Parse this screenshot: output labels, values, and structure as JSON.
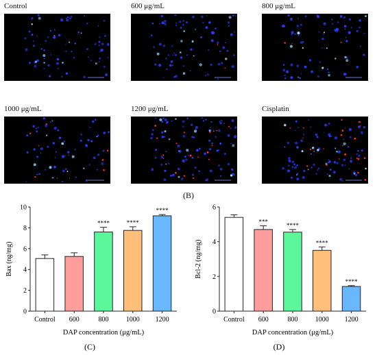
{
  "micrograph_panels": [
    {
      "label": "Control",
      "red_density": 0.0,
      "blue_density": 0.7
    },
    {
      "label": "600 μg/mL",
      "red_density": 0.01,
      "blue_density": 0.75
    },
    {
      "label": "800 μg/mL",
      "red_density": 0.02,
      "blue_density": 0.7
    },
    {
      "label": "1000 μg/mL",
      "red_density": 0.06,
      "blue_density": 0.6
    },
    {
      "label": "1200 μg/mL",
      "red_density": 0.12,
      "blue_density": 0.9
    },
    {
      "label": "Cisplatin",
      "red_density": 0.14,
      "blue_density": 0.85
    }
  ],
  "panel_labels": {
    "B": "(B)",
    "C": "(C)",
    "D": "(D)"
  },
  "colors": {
    "bars": [
      "#ffffff",
      "#ff9c9c",
      "#5cf79a",
      "#ffbf7a",
      "#69b8ff"
    ],
    "nucleus_blue": "#2a3cff",
    "apoptotic_red": "#ff2a2a"
  },
  "chart_data": [
    {
      "type": "bar",
      "categories": [
        "Control",
        "600",
        "800",
        "1000",
        "1200"
      ],
      "values": [
        5.05,
        5.25,
        7.6,
        7.75,
        9.15
      ],
      "errors": [
        0.35,
        0.35,
        0.45,
        0.35,
        0.12
      ],
      "significance": [
        "",
        "",
        "****",
        "****",
        "****"
      ],
      "xlabel": "DAP concentration  (μg/mL)",
      "ylabel": "Bax (ng/mg)",
      "ylim": [
        0,
        10
      ],
      "yticks": [
        0,
        2,
        4,
        6,
        8,
        10
      ],
      "grid": false,
      "caption": "(C)"
    },
    {
      "type": "bar",
      "categories": [
        "Control",
        "600",
        "800",
        "1000",
        "1200"
      ],
      "values": [
        5.4,
        4.7,
        4.55,
        3.5,
        1.42
      ],
      "errors": [
        0.15,
        0.22,
        0.15,
        0.2,
        0.05
      ],
      "significance": [
        "",
        "***",
        "****",
        "****",
        "****"
      ],
      "xlabel": "DAP concentration  (μg/mL)",
      "ylabel": "Bcl-2 (ng/mg)",
      "ylim": [
        0,
        6
      ],
      "yticks": [
        0,
        2,
        4,
        6
      ],
      "grid": false,
      "caption": "(D)"
    }
  ]
}
